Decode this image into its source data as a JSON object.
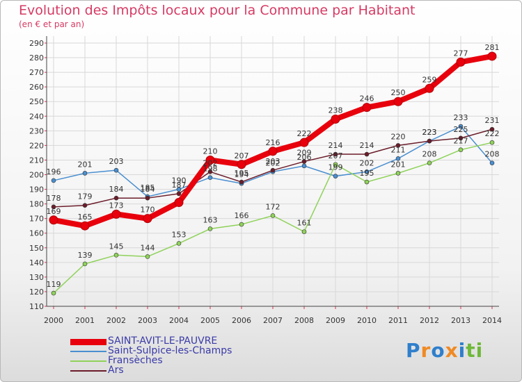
{
  "title": "Evolution des Impôts locaux pour la Commune par Habitant",
  "subtitle": "(en € et par an)",
  "logo": {
    "text": "Proxiti",
    "letters": [
      "P",
      "r",
      "o",
      "x",
      "i",
      "t",
      "i"
    ],
    "letter_colors": [
      "#2f7fcc",
      "#f08a24",
      "#2f7fcc",
      "#f08a24",
      "#2f7fcc",
      "#6fb83a",
      "#6fb83a"
    ]
  },
  "chart_data": {
    "type": "line",
    "x": [
      "2000",
      "2001",
      "2002",
      "2003",
      "2004",
      "2005",
      "2006",
      "2007",
      "2008",
      "2009",
      "2010",
      "2011",
      "2012",
      "2013",
      "2014"
    ],
    "ylim": [
      110,
      290
    ],
    "yticks": [
      110,
      120,
      130,
      140,
      150,
      160,
      170,
      180,
      190,
      200,
      210,
      220,
      230,
      240,
      250,
      260,
      270,
      280,
      290
    ],
    "grid": true,
    "legend_position": "bottom-left",
    "series": [
      {
        "name": "SAINT-AVIT-LE-PAUVRE",
        "color": "#e8000c",
        "bold": true,
        "values": [
          169,
          165,
          173,
          170,
          181,
          210,
          207,
          216,
          222,
          238,
          246,
          250,
          259,
          277,
          281
        ],
        "labels": [
          "169",
          "165",
          "173",
          "170",
          "",
          "210",
          "207",
          "216",
          "222",
          "238",
          "246",
          "250",
          "259",
          "277",
          "281"
        ]
      },
      {
        "name": "Saint-Sulpice-les-Champs",
        "color": "#4a8fd0",
        "values": [
          196,
          201,
          203,
          185,
          190,
          198,
          194,
          202,
          206,
          199,
          202,
          211,
          223,
          233,
          208
        ],
        "labels": [
          "196",
          "201",
          "203",
          "185",
          "190",
          "198",
          "194",
          "202",
          "206",
          "199",
          "202",
          "211",
          "223",
          "233",
          "208"
        ]
      },
      {
        "name": "Fransèches",
        "color": "#8fd25a",
        "values": [
          119,
          139,
          145,
          144,
          153,
          163,
          166,
          172,
          161,
          207,
          195,
          201,
          208,
          217,
          222
        ],
        "labels": [
          "119",
          "139",
          "145",
          "144",
          "153",
          "163",
          "166",
          "172",
          "161",
          "207",
          "195",
          "201",
          "208",
          "217",
          "222"
        ]
      },
      {
        "name": "Ars",
        "color": "#6b1d2a",
        "values": [
          178,
          179,
          184,
          184,
          187,
          202,
          195,
          203,
          209,
          214,
          214,
          220,
          223,
          225,
          231
        ],
        "labels": [
          "178",
          "179",
          "184",
          "184",
          "187",
          "202",
          "195",
          "203",
          "209",
          "214",
          "214",
          "220",
          "223",
          "225",
          "231"
        ]
      }
    ]
  }
}
